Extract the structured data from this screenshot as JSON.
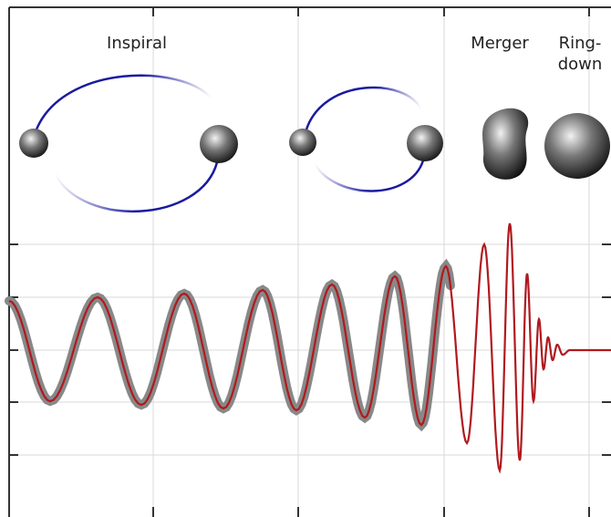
{
  "phases": [
    {
      "label": "Inspiral"
    },
    {
      "label": "Merger"
    },
    {
      "label_lines": [
        "Ring-",
        "down"
      ]
    }
  ]
}
